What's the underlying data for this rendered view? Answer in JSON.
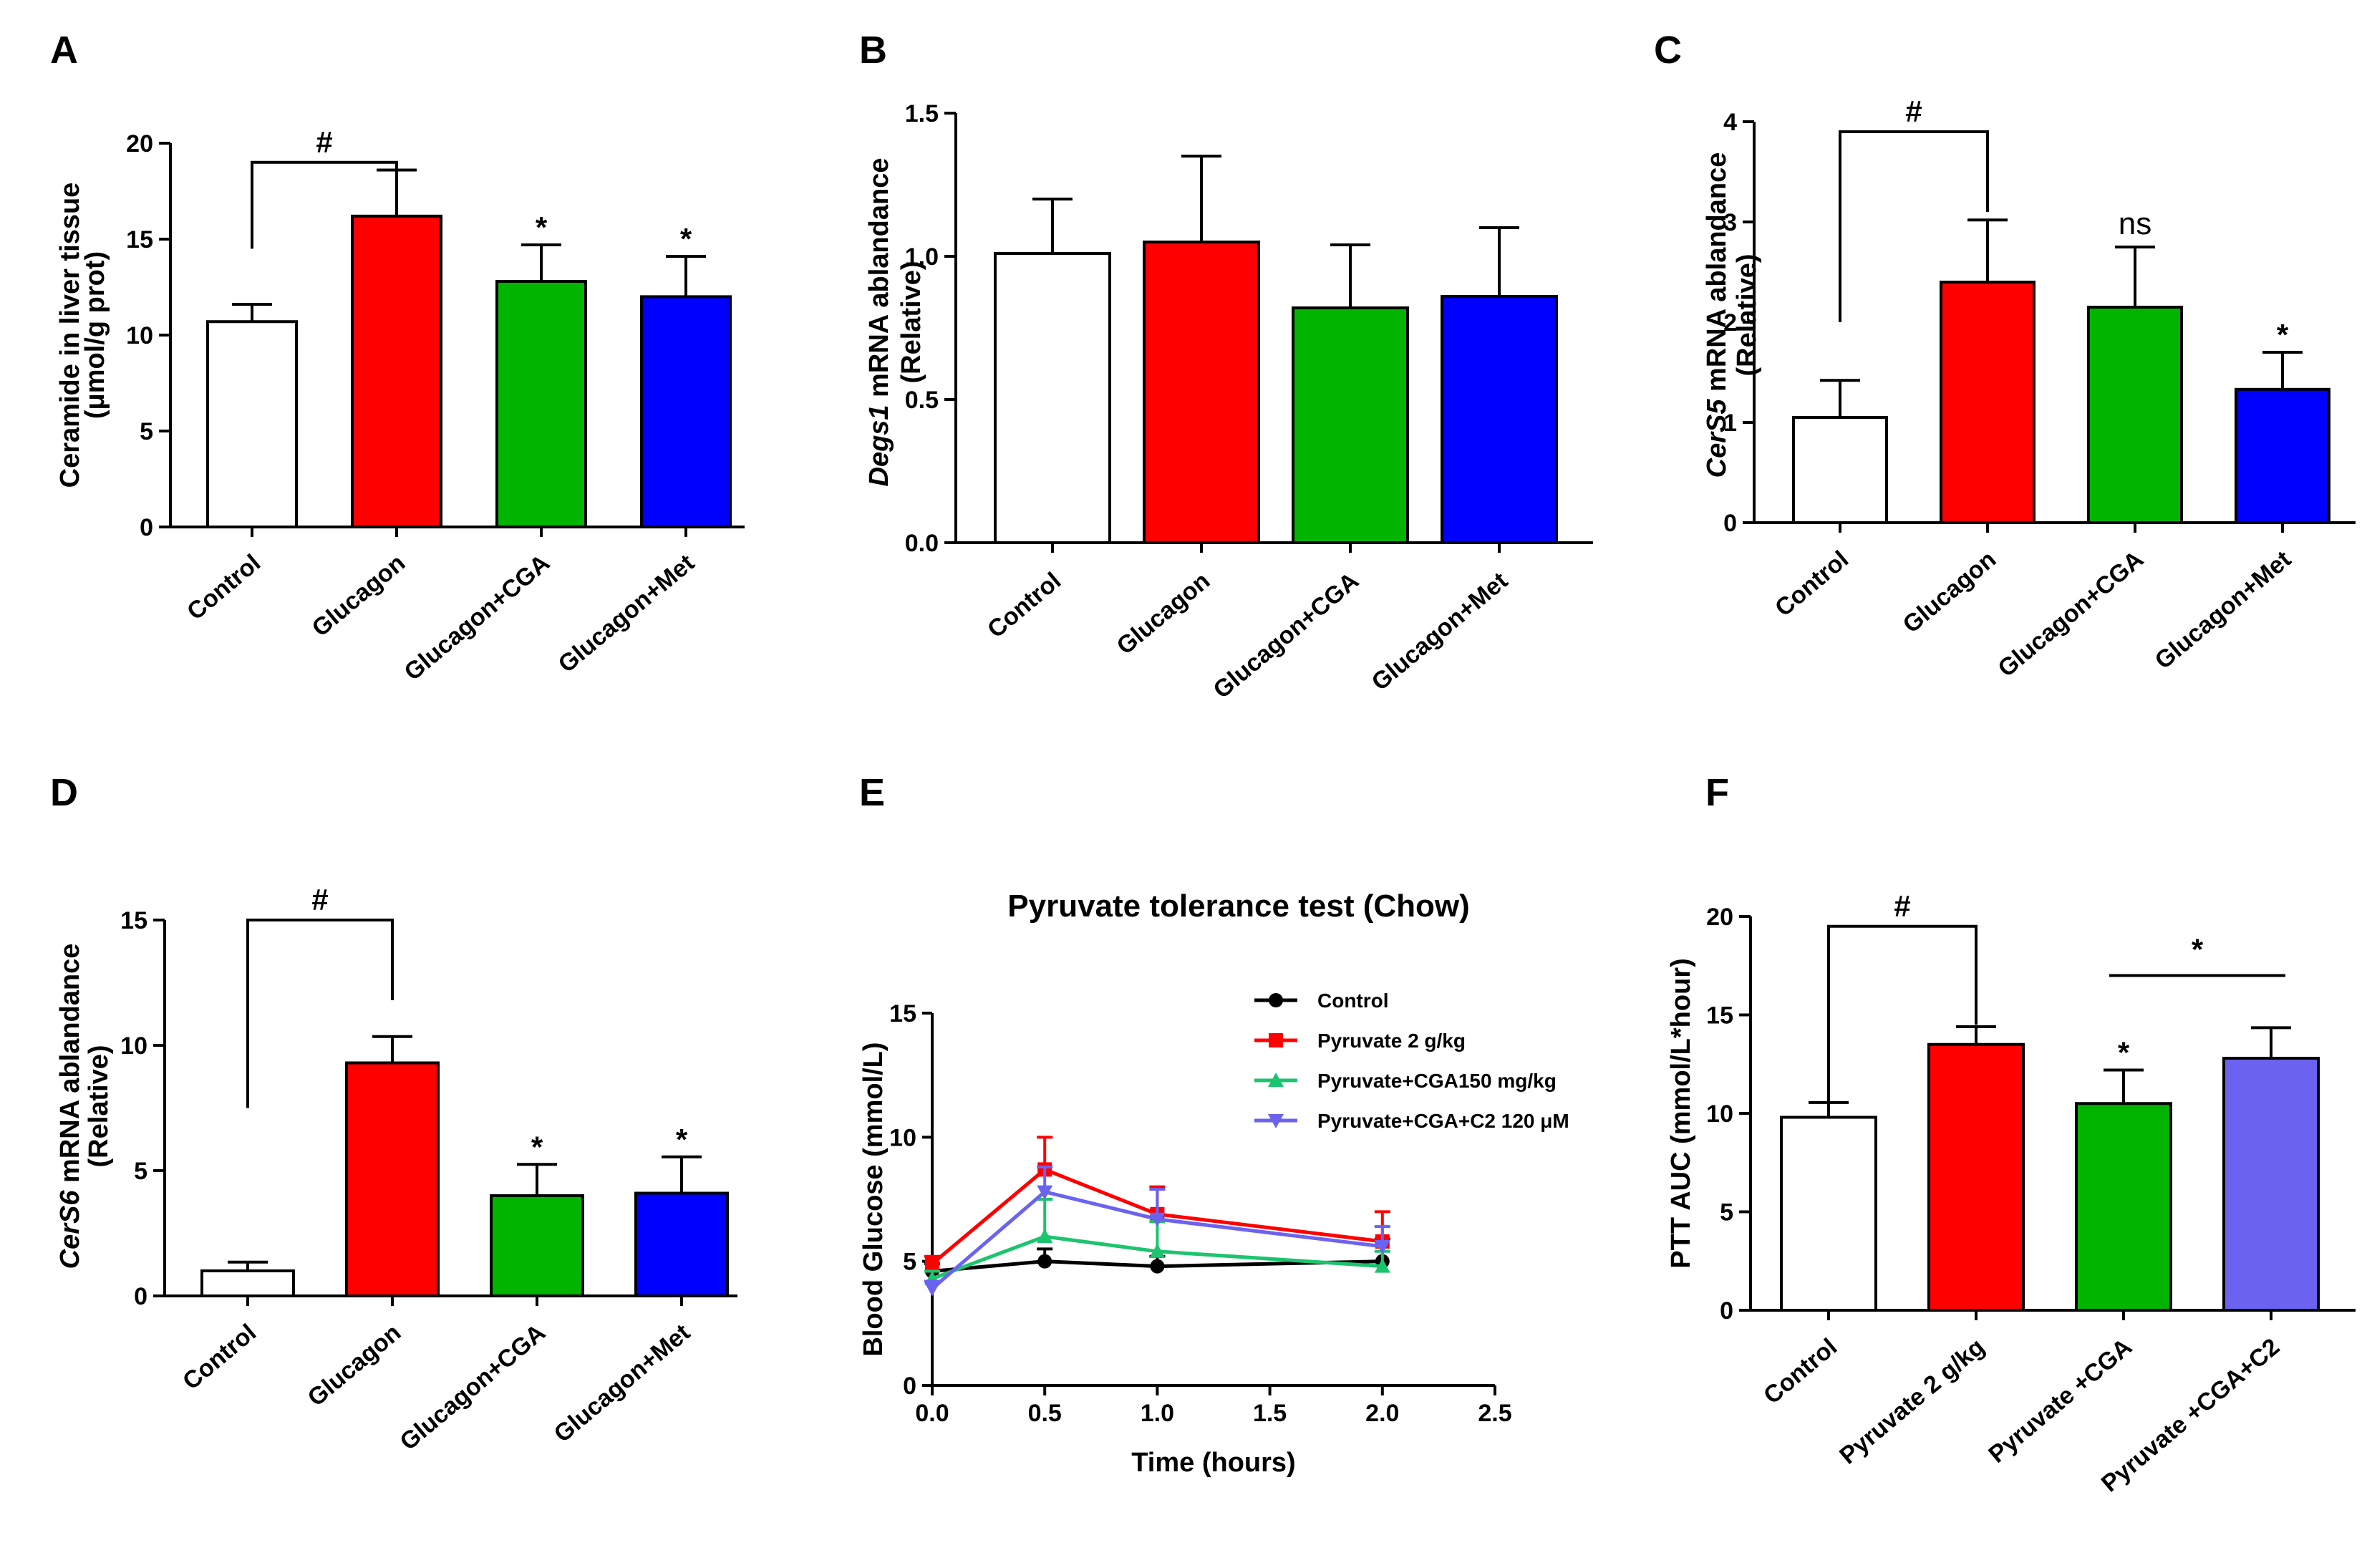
{
  "chart_data": [
    {
      "panel": "A",
      "type": "bar",
      "categories": [
        "Control",
        "Glucagon",
        "Glucagon+CGA",
        "Glucagon+Met"
      ],
      "values": [
        10.7,
        16.2,
        12.8,
        12.0
      ],
      "errors": [
        0.9,
        2.4,
        1.9,
        2.1
      ],
      "colors": [
        "#ffffff",
        "#ff0000",
        "#00b400",
        "#0000ff"
      ],
      "ylabel_lines": [
        "Ceramide in liver tissue",
        "(μmol/g prot)"
      ],
      "ylim": [
        0,
        20
      ],
      "yticks": [
        0,
        5,
        10,
        15,
        20
      ],
      "brackets": [
        {
          "from": 0,
          "to": 1,
          "from_y": 14.5,
          "to_y": 17.0,
          "top": 19.0,
          "label": "#"
        }
      ],
      "marks": [
        {
          "bar": 2,
          "label": "*"
        },
        {
          "bar": 3,
          "label": "*"
        }
      ]
    },
    {
      "panel": "B",
      "type": "bar",
      "categories": [
        "Control",
        "Glucagon",
        "Glucagon+CGA",
        "Glucagon+Met"
      ],
      "values": [
        1.01,
        1.05,
        0.82,
        0.86
      ],
      "errors": [
        0.19,
        0.3,
        0.22,
        0.24
      ],
      "colors": [
        "#ffffff",
        "#ff0000",
        "#00b400",
        "#0000ff"
      ],
      "ylabel_lines": [
        {
          "italic": "Degs1",
          "rest": " mRNA ablandance"
        },
        "(Relative)"
      ],
      "ylim": [
        0,
        1.5
      ],
      "yticks": [
        0.0,
        0.5,
        1.0,
        1.5
      ],
      "brackets": [],
      "marks": []
    },
    {
      "panel": "C",
      "type": "bar",
      "categories": [
        "Control",
        "Glucagon",
        "Glucagon+CGA",
        "Glucagon+Met"
      ],
      "values": [
        1.05,
        2.4,
        2.15,
        1.33
      ],
      "errors": [
        0.37,
        0.62,
        0.6,
        0.37
      ],
      "colors": [
        "#ffffff",
        "#ff0000",
        "#00b400",
        "#0000ff"
      ],
      "ylabel_lines": [
        {
          "italic": "CerS5",
          "rest": " mRNA ablandance"
        },
        "(Relative)"
      ],
      "ylim": [
        0,
        4
      ],
      "yticks": [
        0,
        1,
        2,
        3,
        4
      ],
      "brackets": [
        {
          "from": 0,
          "to": 1,
          "from_y": 2.0,
          "to_y": 3.1,
          "top": 3.9,
          "label": "#"
        }
      ],
      "marks": [
        {
          "bar": 2,
          "label": "ns"
        },
        {
          "bar": 3,
          "label": "*"
        }
      ]
    },
    {
      "panel": "D",
      "type": "bar",
      "categories": [
        "Control",
        "Glucagon",
        "Glucagon+CGA",
        "Glucagon+Met"
      ],
      "values": [
        1.0,
        9.3,
        4.0,
        4.1
      ],
      "errors": [
        0.35,
        1.05,
        1.25,
        1.45
      ],
      "colors": [
        "#ffffff",
        "#ff0000",
        "#00b400",
        "#0000ff"
      ],
      "ylabel_lines": [
        {
          "italic": "CerS6",
          "rest": " mRNA ablandance"
        },
        "(Relative)"
      ],
      "ylim": [
        0,
        15
      ],
      "yticks": [
        0,
        5,
        10,
        15
      ],
      "brackets": [
        {
          "from": 0,
          "to": 1,
          "from_y": 7.5,
          "to_y": 11.8,
          "top": 15.0,
          "label": "#"
        }
      ],
      "marks": [
        {
          "bar": 2,
          "label": "*"
        },
        {
          "bar": 3,
          "label": "*"
        }
      ]
    },
    {
      "panel": "E",
      "type": "line",
      "title": "Pyruvate  tolerance  test (Chow)",
      "xlabel": "Time (hours)",
      "ylabel": "Blood Glucose (mmol/L)",
      "xlim": [
        0,
        2.5
      ],
      "xticks": [
        0.0,
        0.5,
        1.0,
        1.5,
        2.0,
        2.5
      ],
      "ylim": [
        0,
        15
      ],
      "yticks": [
        0,
        5,
        10,
        15
      ],
      "x": [
        0,
        0.5,
        1.0,
        2.0
      ],
      "series": [
        {
          "name": "Control",
          "color": "#000000",
          "marker": "circle",
          "values": [
            4.6,
            5.0,
            4.8,
            5.0
          ],
          "errors": [
            0.3,
            0.5,
            0.4,
            0.9
          ]
        },
        {
          "name": "Pyruvate 2 g/kg",
          "color": "#ff0000",
          "marker": "square",
          "values": [
            4.9,
            8.7,
            6.9,
            5.8
          ],
          "errors": [
            0.3,
            1.3,
            1.1,
            1.2
          ]
        },
        {
          "name": "Pyruvate+CGA150 mg/kg",
          "color": "#1cc46e",
          "marker": "triangle-up",
          "values": [
            4.3,
            6.0,
            5.4,
            4.8
          ],
          "errors": [
            0.3,
            1.5,
            1.2,
            0.6
          ]
        },
        {
          "name": "Pyruvate+CGA+C2 120 μM",
          "color": "#6b63f0",
          "marker": "triangle-down",
          "values": [
            3.9,
            7.8,
            6.7,
            5.6
          ],
          "errors": [
            0.3,
            1.0,
            1.2,
            0.8
          ]
        }
      ]
    },
    {
      "panel": "F",
      "type": "bar",
      "categories": [
        "Control",
        "Pyruvate 2 g/kg",
        "Pyruvate +CGA",
        "Pyruvate +CGA+C2"
      ],
      "values": [
        9.8,
        13.5,
        10.5,
        12.8
      ],
      "errors": [
        0.75,
        0.9,
        1.7,
        1.55
      ],
      "colors": [
        "#ffffff",
        "#ff0000",
        "#00b400",
        "#6b63f0"
      ],
      "ylabel_lines": [
        "PTT AUC (mmol/L*hour)"
      ],
      "ylim": [
        0,
        20
      ],
      "yticks": [
        0,
        5,
        10,
        15,
        20
      ],
      "brackets": [
        {
          "from": 0,
          "to": 1,
          "from_y": 10.0,
          "to_y": 14.5,
          "top": 19.5,
          "label": "#"
        }
      ],
      "lines": [
        {
          "from": 2,
          "to": 3,
          "y": 17.0,
          "label": "*"
        }
      ],
      "marks": [
        {
          "bar": 2,
          "label": "*"
        }
      ]
    }
  ]
}
